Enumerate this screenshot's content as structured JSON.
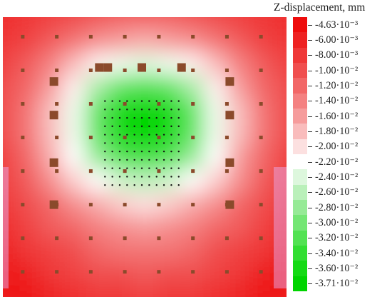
{
  "chart_data": {
    "type": "heatmap",
    "title": "",
    "legend_title": "Z-displacement, mm",
    "legend_placement": "right",
    "colorbar": {
      "min": -0.0371,
      "max": -0.00463,
      "low_color": "#00e000",
      "mid_color": "#ffffff",
      "high_color": "#ee0000",
      "levels": [
        {
          "value": -0.00463,
          "label": "-4.63·10⁻³",
          "color": "#ee0c0c"
        },
        {
          "value": -0.006,
          "label": "-6.00·10⁻³",
          "color": "#ee2222"
        },
        {
          "value": -0.008,
          "label": "-8.00·10⁻³",
          "color": "#ef3838"
        },
        {
          "value": -0.01,
          "label": "-1.00·10⁻²",
          "color": "#f04f4f"
        },
        {
          "value": -0.012,
          "label": "-1.20·10⁻²",
          "color": "#f26767"
        },
        {
          "value": -0.014,
          "label": "-1.40·10⁻²",
          "color": "#f48181"
        },
        {
          "value": -0.016,
          "label": "-1.60·10⁻²",
          "color": "#f69c9c"
        },
        {
          "value": -0.018,
          "label": "-1.80·10⁻²",
          "color": "#f9bcbc"
        },
        {
          "value": -0.02,
          "label": "-2.00·10⁻²",
          "color": "#fce0e0"
        },
        {
          "value": -0.022,
          "label": "-2.20·10⁻²",
          "color": "#ffffff"
        },
        {
          "value": -0.024,
          "label": "-2.40·10⁻²",
          "color": "#ddf7dd"
        },
        {
          "value": -0.026,
          "label": "-2.60·10⁻²",
          "color": "#baf0ba"
        },
        {
          "value": -0.028,
          "label": "-2.80·10⁻²",
          "color": "#96ea96"
        },
        {
          "value": -0.03,
          "label": "-3.00·10⁻²",
          "color": "#74e674"
        },
        {
          "value": -0.032,
          "label": "-3.20·10⁻²",
          "color": "#52e252"
        },
        {
          "value": -0.034,
          "label": "-3.40·10⁻²",
          "color": "#32de32"
        },
        {
          "value": -0.036,
          "label": "-3.60·10⁻²",
          "color": "#14da14"
        },
        {
          "value": -0.0371,
          "label": "-3.71·10⁻²",
          "color": "#00d400"
        }
      ]
    },
    "field": {
      "grid_cols": 13,
      "grid_rows": 13,
      "values": [
        [
          -0.007,
          -0.008,
          -0.009,
          -0.01,
          -0.011,
          -0.012,
          -0.012,
          -0.012,
          -0.011,
          -0.01,
          -0.009,
          -0.008,
          -0.007
        ],
        [
          -0.008,
          -0.009,
          -0.011,
          -0.013,
          -0.015,
          -0.016,
          -0.017,
          -0.016,
          -0.015,
          -0.013,
          -0.011,
          -0.009,
          -0.008
        ],
        [
          -0.009,
          -0.011,
          -0.014,
          -0.018,
          -0.021,
          -0.023,
          -0.024,
          -0.023,
          -0.021,
          -0.018,
          -0.014,
          -0.011,
          -0.009
        ],
        [
          -0.01,
          -0.012,
          -0.016,
          -0.021,
          -0.027,
          -0.031,
          -0.032,
          -0.031,
          -0.027,
          -0.021,
          -0.016,
          -0.012,
          -0.01
        ],
        [
          -0.01,
          -0.013,
          -0.018,
          -0.023,
          -0.031,
          -0.036,
          -0.037,
          -0.036,
          -0.031,
          -0.023,
          -0.018,
          -0.013,
          -0.01
        ],
        [
          -0.01,
          -0.013,
          -0.018,
          -0.023,
          -0.031,
          -0.036,
          -0.037,
          -0.036,
          -0.031,
          -0.023,
          -0.018,
          -0.013,
          -0.01
        ],
        [
          -0.009,
          -0.012,
          -0.017,
          -0.022,
          -0.028,
          -0.032,
          -0.033,
          -0.032,
          -0.028,
          -0.022,
          -0.016,
          -0.012,
          -0.009
        ],
        [
          -0.009,
          -0.011,
          -0.015,
          -0.019,
          -0.022,
          -0.025,
          -0.026,
          -0.025,
          -0.022,
          -0.019,
          -0.015,
          -0.011,
          -0.009
        ],
        [
          -0.008,
          -0.01,
          -0.012,
          -0.015,
          -0.017,
          -0.019,
          -0.02,
          -0.019,
          -0.017,
          -0.015,
          -0.012,
          -0.01,
          -0.008
        ],
        [
          -0.007,
          -0.009,
          -0.011,
          -0.012,
          -0.014,
          -0.015,
          -0.016,
          -0.015,
          -0.014,
          -0.012,
          -0.011,
          -0.009,
          -0.007
        ],
        [
          -0.006,
          -0.008,
          -0.009,
          -0.01,
          -0.012,
          -0.013,
          -0.013,
          -0.013,
          -0.012,
          -0.01,
          -0.009,
          -0.008,
          -0.006
        ],
        [
          -0.005,
          -0.006,
          -0.008,
          -0.009,
          -0.01,
          -0.01,
          -0.011,
          -0.01,
          -0.01,
          -0.009,
          -0.008,
          -0.006,
          -0.005
        ],
        [
          -0.005,
          -0.005,
          -0.006,
          -0.007,
          -0.008,
          -0.008,
          -0.009,
          -0.008,
          -0.008,
          -0.007,
          -0.006,
          -0.005,
          -0.005
        ]
      ]
    },
    "markers": {
      "color": "#8b4a2b",
      "small_grid": {
        "cols": [
          0.07,
          0.19,
          0.31,
          0.43,
          0.55,
          0.67,
          0.79,
          0.91
        ],
        "rows": [
          0.07,
          0.19,
          0.31,
          0.43,
          0.55,
          0.67,
          0.79,
          0.91
        ]
      },
      "large_ring": [
        [
          0.18,
          0.23
        ],
        [
          0.34,
          0.18
        ],
        [
          0.49,
          0.18
        ],
        [
          0.63,
          0.18
        ],
        [
          0.8,
          0.23
        ],
        [
          0.18,
          0.35
        ],
        [
          0.8,
          0.35
        ],
        [
          0.18,
          0.52
        ],
        [
          0.8,
          0.52
        ],
        [
          0.18,
          0.67
        ],
        [
          0.8,
          0.67
        ],
        [
          0.37,
          0.18
        ]
      ],
      "dot_cluster": {
        "x_range": [
          0.36,
          0.62
        ],
        "y_range": [
          0.3,
          0.6
        ],
        "cols": 11,
        "rows": 11
      }
    }
  }
}
